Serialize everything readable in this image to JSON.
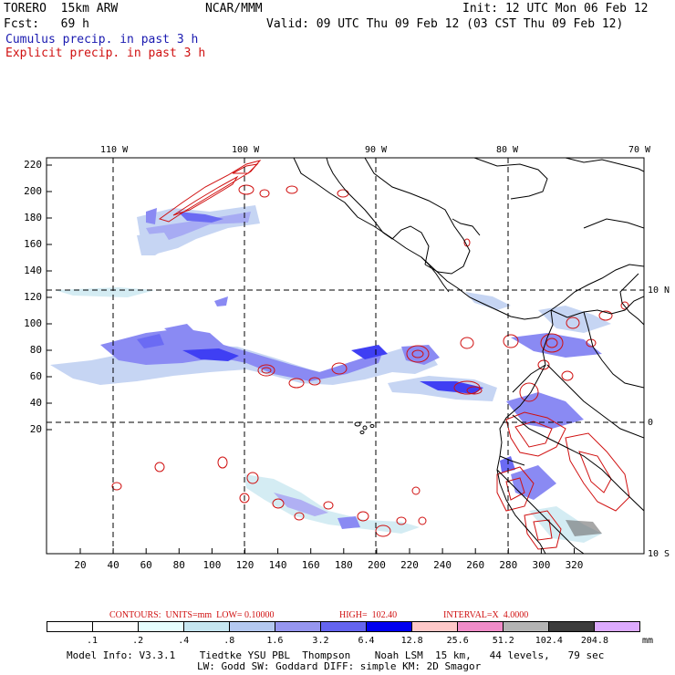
{
  "header": {
    "model": "TORERO  15km ARW",
    "org": "NCAR/MMM",
    "init": "Init: 12 UTC Mon 06 Feb 12",
    "fcst": "Fcst:   69 h",
    "valid": "Valid: 09 UTC Thu 09 Feb 12 (03 CST Thu 09 Feb 12)",
    "cumulus": "Cumulus precip. in past 3 h",
    "explicit": "Explicit precip. in past 3 h"
  },
  "map": {
    "top_lon_labels": [
      "110 W",
      "100 W",
      "90 W",
      "80 W",
      "70 W"
    ],
    "right_lat_labels": [
      "10 N",
      "0",
      "10 S"
    ],
    "y_ticks": [
      "220",
      "200",
      "180",
      "160",
      "140",
      "120",
      "100",
      "80",
      "60",
      "40",
      "20"
    ],
    "x_ticks": [
      "20",
      "40",
      "60",
      "80",
      "100",
      "120",
      "140",
      "160",
      "180",
      "200",
      "220",
      "240",
      "260",
      "280",
      "300",
      "320"
    ]
  },
  "contours_info": {
    "units": "CONTOURS:  UNITS=mm  LOW= 0.10000",
    "high": "HIGH=  102.40",
    "interval": "INTERVAL=X  4.0000"
  },
  "colorbar": {
    "labels": [
      ".1",
      ".2",
      ".4",
      ".8",
      "1.6",
      "3.2",
      "6.4",
      "12.8",
      "25.6",
      "51.2",
      "102.4",
      "204.8"
    ],
    "unit": "mm",
    "colors": [
      "#ffffff",
      "#ffffff",
      "#e6ffff",
      "#c6e6f0",
      "#b4c8f0",
      "#9696f0",
      "#6464f0",
      "#0000f0",
      "#ffc8c8",
      "#f08cc8",
      "#b4b4b4",
      "#3c3c3c",
      "#dcaaff"
    ]
  },
  "footer": {
    "line1": "Model Info: V3.3.1    Tiedtke YSU PBL  Thompson    Noah LSM  15 km,   44 levels,   79 sec",
    "line2": "LW: Godd SW: Goddard DIFF: simple KM: 2D Smagor"
  }
}
